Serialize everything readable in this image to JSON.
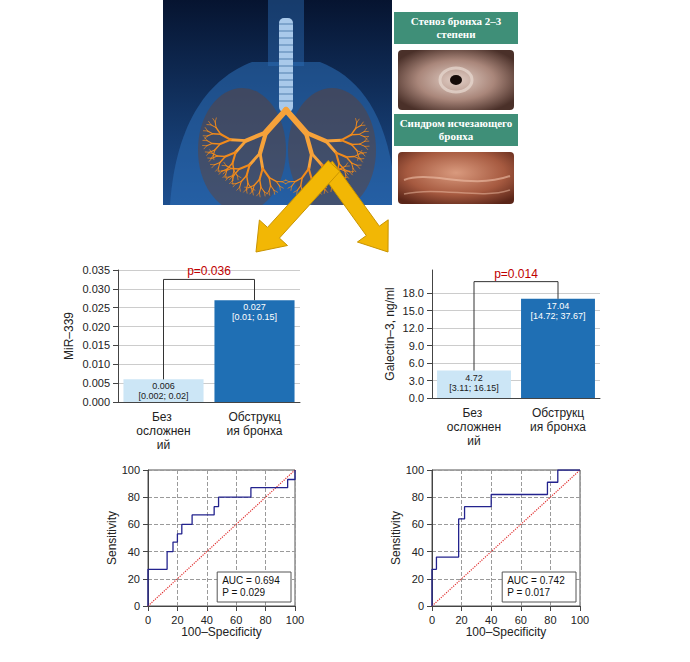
{
  "illustration": {
    "labels": [
      "Стеноз бронха 2–3 степени",
      "Синдром исчезающего бронха"
    ]
  },
  "chart_data": [
    {
      "type": "bar",
      "categories": [
        "Без осложнений",
        "Обструкция бронха"
      ],
      "values": [
        0.006,
        0.027
      ],
      "colors": [
        "#cce6f6",
        "#1f6fb4"
      ],
      "iqr_labels": [
        "[0.002; 0.02]",
        "[0.01; 0.15]"
      ],
      "data_labels": true,
      "y_label": "MiR–339",
      "ylim": [
        0,
        0.035
      ],
      "yticks": [
        {
          "value": 0,
          "label": "0.000"
        },
        {
          "value": 0.005,
          "label": "0.005"
        },
        {
          "value": 0.01,
          "label": "0.010"
        },
        {
          "value": 0.015,
          "label": "0.015"
        },
        {
          "value": 0.02,
          "label": "0.020"
        },
        {
          "value": 0.025,
          "label": "0.025"
        },
        {
          "value": 0.03,
          "label": "0.030"
        },
        {
          "value": 0.035,
          "label": "0.035"
        }
      ],
      "grid": true,
      "annotations": [
        {
          "text": "p=0.036",
          "y": 0.0325
        }
      ]
    },
    {
      "type": "bar",
      "categories": [
        "Без осложнений",
        "Обструкция бронха"
      ],
      "values": [
        4.72,
        17.04
      ],
      "colors": [
        "#cce6f6",
        "#1f6fb4"
      ],
      "iqr_labels": [
        "[3.11; 16.15]",
        "[14.72; 37.67]"
      ],
      "data_labels": true,
      "y_label": "Galectin–3, ng/ml",
      "ylim": [
        0,
        22
      ],
      "yticks": [
        {
          "value": 0,
          "label": "0.0"
        },
        {
          "value": 3,
          "label": "3.0"
        },
        {
          "value": 6,
          "label": "6.0"
        },
        {
          "value": 9,
          "label": "9.0"
        },
        {
          "value": 12,
          "label": "12.0"
        },
        {
          "value": 15,
          "label": "15.0"
        },
        {
          "value": 18,
          "label": "18.0"
        }
      ],
      "grid": true,
      "annotations": [
        {
          "text": "p=0.014",
          "y": 20
        }
      ]
    },
    {
      "type": "line",
      "x_label": "100–Specificity",
      "y_label": "Sensitivity",
      "x": [
        0,
        0,
        13,
        13,
        17,
        17,
        20,
        20,
        23,
        23,
        30,
        30,
        45,
        45,
        48,
        48,
        70,
        70,
        95,
        95,
        100,
        100
      ],
      "values": [
        0,
        27,
        27,
        40,
        40,
        47,
        47,
        53,
        53,
        60,
        60,
        67,
        67,
        73,
        73,
        80,
        80,
        87,
        87,
        93,
        93,
        100
      ],
      "color": "#23238e",
      "marker": "none",
      "line_style": "solid",
      "reference": {
        "x": [
          0,
          100
        ],
        "values": [
          0,
          100
        ],
        "color": "#e03030",
        "line_style": "dotted"
      },
      "xlim": [
        0,
        100
      ],
      "ylim": [
        0,
        100
      ],
      "xticks": [
        0,
        20,
        40,
        60,
        80,
        100
      ],
      "yticks": [
        0,
        20,
        40,
        60,
        80,
        100
      ],
      "grid": true,
      "annotations": [
        "AUC = 0.694",
        "P = 0.029"
      ]
    },
    {
      "type": "line",
      "x_label": "100–Specificity",
      "y_label": "Sensitivity",
      "x": [
        0,
        0,
        3,
        3,
        18,
        18,
        22,
        22,
        40,
        40,
        78,
        78,
        85,
        85,
        100
      ],
      "values": [
        0,
        27,
        27,
        36,
        36,
        64,
        64,
        73,
        73,
        82,
        82,
        91,
        91,
        100,
        100
      ],
      "color": "#23238e",
      "marker": "none",
      "line_style": "solid",
      "reference": {
        "x": [
          0,
          100
        ],
        "values": [
          0,
          100
        ],
        "color": "#e03030",
        "line_style": "dotted"
      },
      "xlim": [
        0,
        100
      ],
      "ylim": [
        0,
        100
      ],
      "xticks": [
        0,
        20,
        40,
        60,
        80,
        100
      ],
      "yticks": [
        0,
        20,
        40,
        60,
        80,
        100
      ],
      "grid": true,
      "annotations": [
        "AUC = 0.742",
        "P = 0.017"
      ]
    }
  ]
}
